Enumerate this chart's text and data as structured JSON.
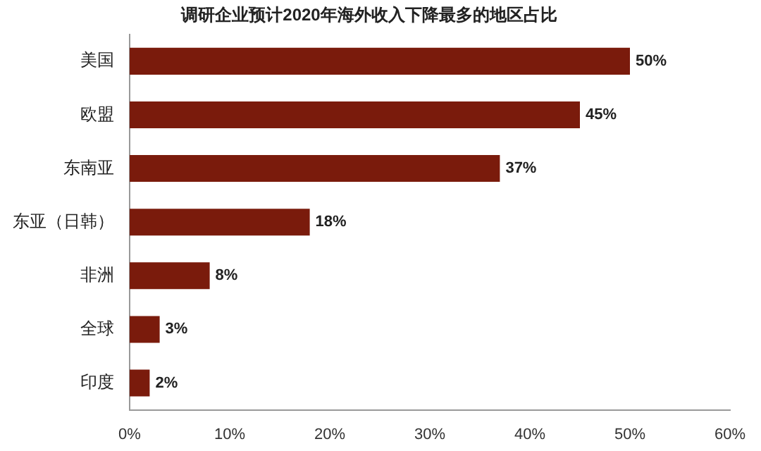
{
  "chart_data": {
    "type": "bar",
    "orientation": "horizontal",
    "title": "调研企业预计2020年海外收入下降最多的地区占比",
    "categories": [
      "美国",
      "欧盟",
      "东南亚",
      "东亚（日韩）",
      "非洲",
      "全球",
      "印度"
    ],
    "values": [
      50,
      45,
      37,
      18,
      8,
      3,
      2
    ],
    "color": "#7a1b0c",
    "value_labels": [
      "50%",
      "45%",
      "37%",
      "18%",
      "8%",
      "3%",
      "2%"
    ],
    "xlim": [
      0,
      60
    ],
    "xticks": [
      {
        "value": 0,
        "label": "0%"
      },
      {
        "value": 10,
        "label": "10%"
      },
      {
        "value": 20,
        "label": "20%"
      },
      {
        "value": 30,
        "label": "30%"
      },
      {
        "value": 40,
        "label": "40%"
      },
      {
        "value": 50,
        "label": "50%"
      },
      {
        "value": 60,
        "label": "60%"
      }
    ],
    "legend": false
  }
}
